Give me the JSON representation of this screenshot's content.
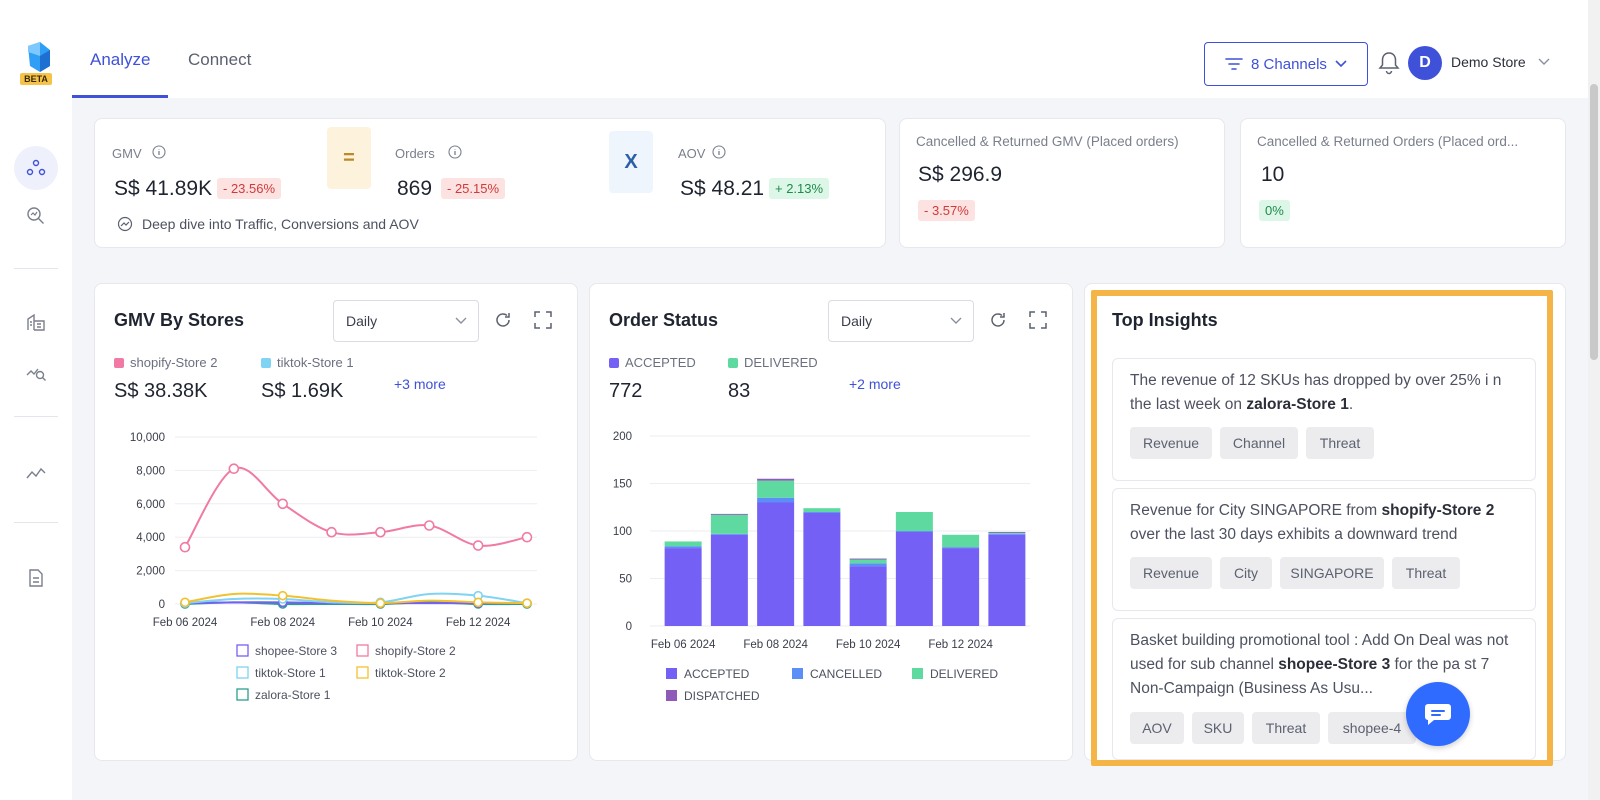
{
  "app": {
    "badge": "BETA"
  },
  "nav": {
    "tabs": [
      {
        "label": "Analyze",
        "active": true
      },
      {
        "label": "Connect",
        "active": false
      }
    ]
  },
  "header": {
    "channels_label": "8 Channels",
    "avatar_initial": "D",
    "store_name": "Demo Store"
  },
  "kpis": {
    "gmv": {
      "label": "GMV",
      "value": "S$ 41.89K",
      "change": "- 23.56%"
    },
    "equals": "=",
    "orders": {
      "label": "Orders",
      "value": "869",
      "change": "- 25.15%"
    },
    "times": "X",
    "aov": {
      "label": "AOV",
      "value": "S$ 48.21",
      "change": "+ 2.13%"
    },
    "deep_dive": "Deep dive into Traffic, Conversions and AOV",
    "cancelled_gmv": {
      "label": "Cancelled & Returned GMV (Placed orders)",
      "value": "S$ 296.9",
      "change": "- 3.57%"
    },
    "cancelled_orders": {
      "label": "Cancelled & Returned Orders (Placed ord...",
      "value": "10",
      "change": "0%"
    }
  },
  "gmv_card": {
    "title": "GMV By Stores",
    "period": "Daily",
    "top_legend": [
      {
        "name": "shopify-Store 2",
        "value": "S$ 38.38K",
        "color": "#f07aa3"
      },
      {
        "name": "tiktok-Store 1",
        "value": "S$ 1.69K",
        "color": "#7fd3f3"
      }
    ],
    "more": "+3 more",
    "bottom_legend": [
      "shopee-Store 3",
      "shopify-Store 2",
      "tiktok-Store 1",
      "tiktok-Store 2",
      "zalora-Store 1"
    ]
  },
  "order_card": {
    "title": "Order Status",
    "period": "Daily",
    "top_legend": [
      {
        "name": "ACCEPTED",
        "value": "772",
        "color": "#7560f5"
      },
      {
        "name": "DELIVERED",
        "value": "83",
        "color": "#5ed9a0"
      }
    ],
    "more": "+2 more",
    "bottom_legend": [
      "ACCEPTED",
      "CANCELLED",
      "DELIVERED",
      "DISPATCHED"
    ]
  },
  "insights": {
    "title": "Top Insights",
    "items": [
      {
        "pre": "The revenue of 12 SKUs has dropped by over 25% i n the last week on ",
        "bold": "zalora-Store 1",
        "post": ".",
        "chips": [
          "Revenue",
          "Channel",
          "Threat"
        ]
      },
      {
        "pre": "Revenue for City SINGAPORE from ",
        "bold": "shopify-Store 2",
        "post": " over the last 30 days exhibits a downward trend",
        "chips": [
          "Revenue",
          "City",
          "SINGAPORE",
          "Threat"
        ]
      },
      {
        "pre": "Basket building promotional tool : Add On Deal was not used for sub channel ",
        "bold": "shopee-Store 3",
        "post": " for the pa st 7 Non-Campaign (Business As Usu...",
        "chips": [
          "AOV",
          "SKU",
          "Threat",
          "shopee-4"
        ]
      }
    ]
  },
  "chart_data": [
    {
      "type": "line",
      "title": "GMV By Stores",
      "x": [
        "Feb 06 2024",
        "Feb 07 2024",
        "Feb 08 2024",
        "Feb 09 2024",
        "Feb 10 2024",
        "Feb 11 2024",
        "Feb 12 2024",
        "Feb 13 2024"
      ],
      "x_tick_labels": [
        "Feb 06 2024",
        "Feb 08 2024",
        "Feb 10 2024",
        "Feb 12 2024"
      ],
      "ylim": [
        0,
        10000
      ],
      "y_ticks": [
        "0",
        "2,000",
        "4,000",
        "6,000",
        "8,000",
        "10,000"
      ],
      "series": [
        {
          "name": "shopee-Store 3",
          "color": "#7560f5",
          "values": [
            50,
            100,
            100,
            50,
            50,
            50,
            50,
            50
          ]
        },
        {
          "name": "shopify-Store 2",
          "color": "#f07aa3",
          "values": [
            3400,
            8100,
            6000,
            4300,
            4300,
            4700,
            3500,
            4000
          ]
        },
        {
          "name": "tiktok-Store 1",
          "color": "#7fd3f3",
          "values": [
            50,
            300,
            300,
            100,
            100,
            600,
            500,
            50
          ]
        },
        {
          "name": "tiktok-Store 2",
          "color": "#f3c12e",
          "values": [
            100,
            600,
            500,
            200,
            50,
            200,
            100,
            50
          ]
        },
        {
          "name": "zalora-Store 1",
          "color": "#2e9e8f",
          "values": [
            0,
            100,
            0,
            0,
            0,
            100,
            0,
            0
          ]
        }
      ]
    },
    {
      "type": "bar",
      "title": "Order Status",
      "x": [
        "Feb 06 2024",
        "Feb 07 2024",
        "Feb 08 2024",
        "Feb 09 2024",
        "Feb 10 2024",
        "Feb 11 2024",
        "Feb 12 2024",
        "Feb 13 2024"
      ],
      "x_tick_labels": [
        "Feb 06 2024",
        "Feb 08 2024",
        "Feb 10 2024",
        "Feb 12 2024"
      ],
      "ylim": [
        0,
        200
      ],
      "y_ticks": [
        "0",
        "50",
        "100",
        "150",
        "200"
      ],
      "stacked": true,
      "series": [
        {
          "name": "ACCEPTED",
          "color": "#7560f5",
          "values": [
            82,
            96,
            130,
            119,
            63,
            99,
            82,
            96
          ]
        },
        {
          "name": "CANCELLED",
          "color": "#5b8ef7",
          "values": [
            2,
            1,
            5,
            1,
            3,
            1,
            1,
            1
          ]
        },
        {
          "name": "DELIVERED",
          "color": "#5ed9a0",
          "values": [
            5,
            20,
            18,
            4,
            4,
            20,
            13,
            1
          ]
        },
        {
          "name": "DISPATCHED",
          "color": "#8e5bb8",
          "values": [
            0,
            1,
            2,
            0,
            1,
            0,
            0,
            1
          ]
        }
      ]
    }
  ]
}
